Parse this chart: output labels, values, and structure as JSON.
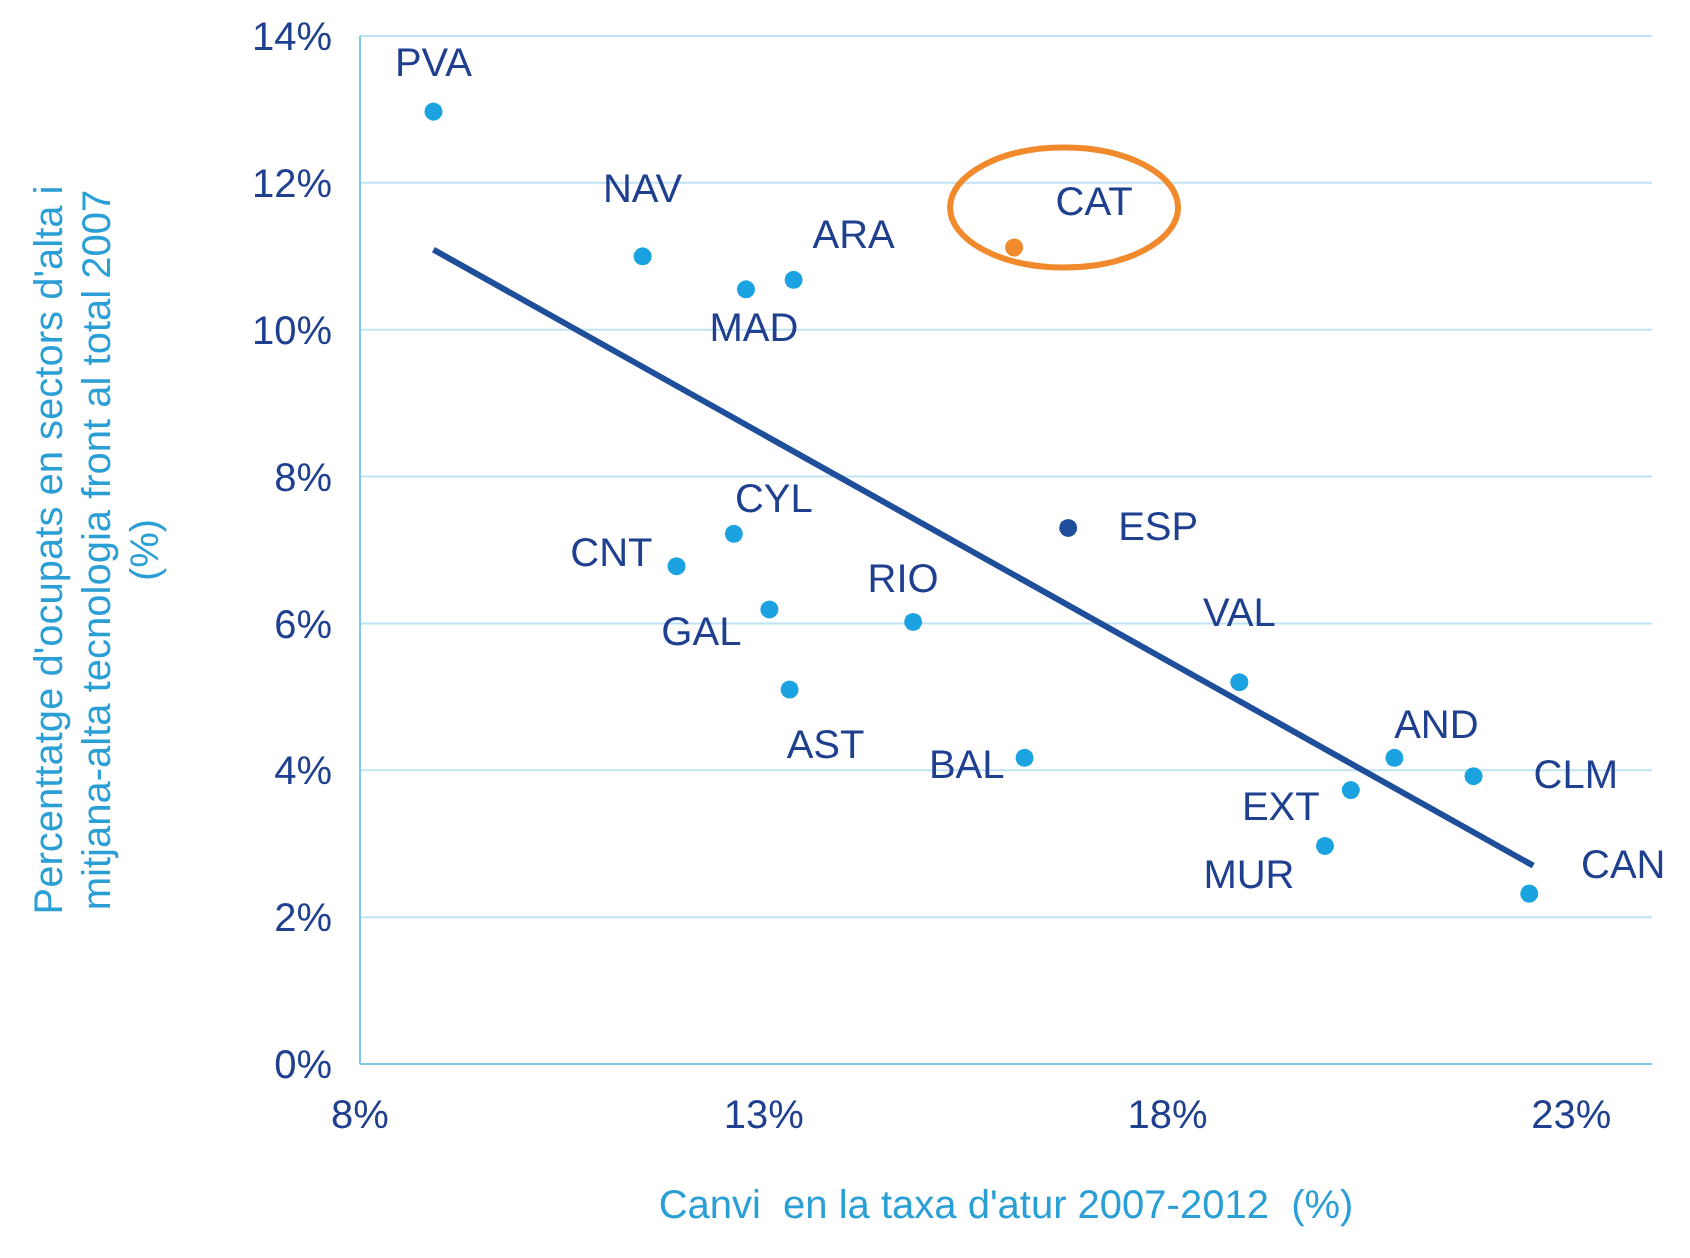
{
  "chart_data": {
    "type": "scatter",
    "xlabel": "Canvi  en la taxa d'atur 2007-2012  (%)",
    "ylabel": "Percenttatge d'ocupats  en sectors d'alta i\nmitjana-alta tecnologia front al total 2007\n(%)",
    "x": [
      8.91,
      11.5,
      12.78,
      13.37,
      16.1,
      16.77,
      12.63,
      11.92,
      13.07,
      14.85,
      13.32,
      18.89,
      16.23,
      20.81,
      21.79,
      20.27,
      19.95,
      22.48
    ],
    "series": [
      {
        "marker": "circle",
        "colors": [
          "#1aa3e0",
          "#1aa3e0",
          "#1aa3e0",
          "#1aa3e0",
          "#f08a2c",
          "#1f4e9a",
          "#1aa3e0",
          "#1aa3e0",
          "#1aa3e0",
          "#1aa3e0",
          "#1aa3e0",
          "#1aa3e0",
          "#1aa3e0",
          "#1aa3e0",
          "#1aa3e0",
          "#1aa3e0",
          "#1aa3e0",
          "#1aa3e0"
        ],
        "values": [
          12.97,
          11.0,
          10.55,
          10.68,
          11.12,
          7.3,
          7.22,
          6.78,
          6.19,
          6.02,
          5.1,
          5.2,
          4.17,
          4.17,
          3.92,
          3.73,
          2.97,
          2.32
        ],
        "value_labels": [
          "PVA",
          "NAV",
          "MAD",
          "ARA",
          "CAT",
          "ESP",
          "CYL",
          "CNT",
          "GAL",
          "RIO",
          "AST",
          "VAL",
          "BAL",
          "AND",
          "CLM",
          "EXT",
          "MUR",
          "CAN"
        ]
      },
      {
        "type": "line",
        "marker": "none",
        "color": "#1f4e9a",
        "x": [
          8.91,
          22.53
        ],
        "values": [
          11.09,
          2.7
        ]
      }
    ],
    "xlim": [
      8,
      24
    ],
    "xticks": [
      {
        "value": 8,
        "label": "8%"
      },
      {
        "value": 13,
        "label": "13%"
      },
      {
        "value": 18,
        "label": "18%"
      },
      {
        "value": 23,
        "label": "23%"
      }
    ],
    "ylim": [
      0,
      14
    ],
    "yticks": [
      {
        "value": 0,
        "label": "0%"
      },
      {
        "value": 2,
        "label": "2%"
      },
      {
        "value": 4,
        "label": "4%"
      },
      {
        "value": 6,
        "label": "6%"
      },
      {
        "value": 8,
        "label": "8%"
      },
      {
        "value": 10,
        "label": "10%"
      },
      {
        "value": 12,
        "label": "12%"
      },
      {
        "value": 14,
        "label": "14%"
      }
    ],
    "grid": "y",
    "legend": false
  }
}
